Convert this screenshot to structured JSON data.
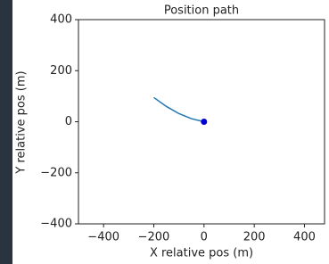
{
  "chart_data": {
    "type": "line",
    "title": "Position path",
    "x_label": "X relative pos (m)",
    "y_label": "Y relative pos (m)",
    "x": [
      -200,
      -150,
      -100,
      -50,
      0
    ],
    "values": [
      95,
      60,
      32,
      12,
      0
    ],
    "color": "#1f77b4",
    "points": [
      {
        "x": 0,
        "y": 0,
        "color": "#0000cc"
      }
    ],
    "xlim": [
      -500,
      480
    ],
    "ylim": [
      -400,
      400
    ],
    "xticks": [
      {
        "value": -400,
        "label": "−400"
      },
      {
        "value": -200,
        "label": "−200"
      },
      0,
      200,
      400
    ],
    "yticks": [
      {
        "value": -400,
        "label": "−400"
      },
      {
        "value": -200,
        "label": "−200"
      },
      0,
      200,
      400
    ],
    "grid": false
  }
}
